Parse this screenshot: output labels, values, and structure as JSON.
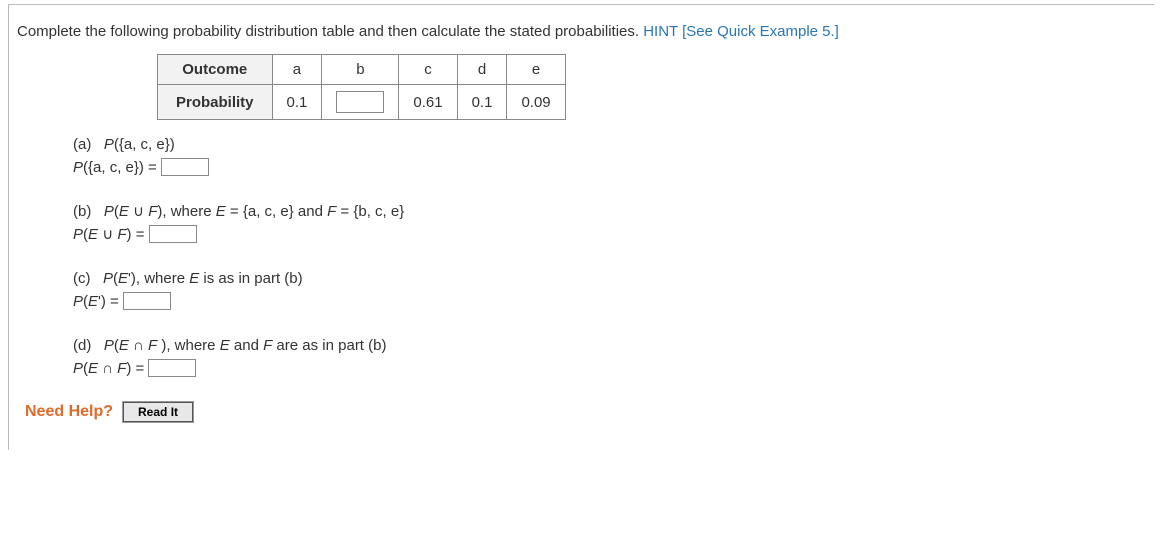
{
  "prompt": {
    "text": "Complete the following probability distribution table and then calculate the stated probabilities. ",
    "hint_label": "HINT [See Quick Example 5.]"
  },
  "table": {
    "row1_head": "Outcome",
    "row2_head": "Probability",
    "outcomes": [
      "a",
      "b",
      "c",
      "d",
      "e"
    ],
    "probs": {
      "a": "0.1",
      "b": "",
      "c": "0.61",
      "d": "0.1",
      "e": "0.09"
    }
  },
  "parts": {
    "a": {
      "label": "(a)    P({a, c, e})",
      "lhs": "P({a, c, e}) = "
    },
    "b": {
      "label": "(b)    P(E ∪ F), where E = {a, c, e} and F = {b, c, e}",
      "lhs": "P(E ∪ F) = "
    },
    "c": {
      "label": "(c)    P(E'), where E is as in part (b)",
      "lhs": "P(E') = "
    },
    "d": {
      "label": "(d)    P(E ∩ F ), where E and F are as in part (b)",
      "lhs": "P(E ∩ F) = "
    }
  },
  "help": {
    "need_help": "Need Help?",
    "read_it": "Read It"
  }
}
